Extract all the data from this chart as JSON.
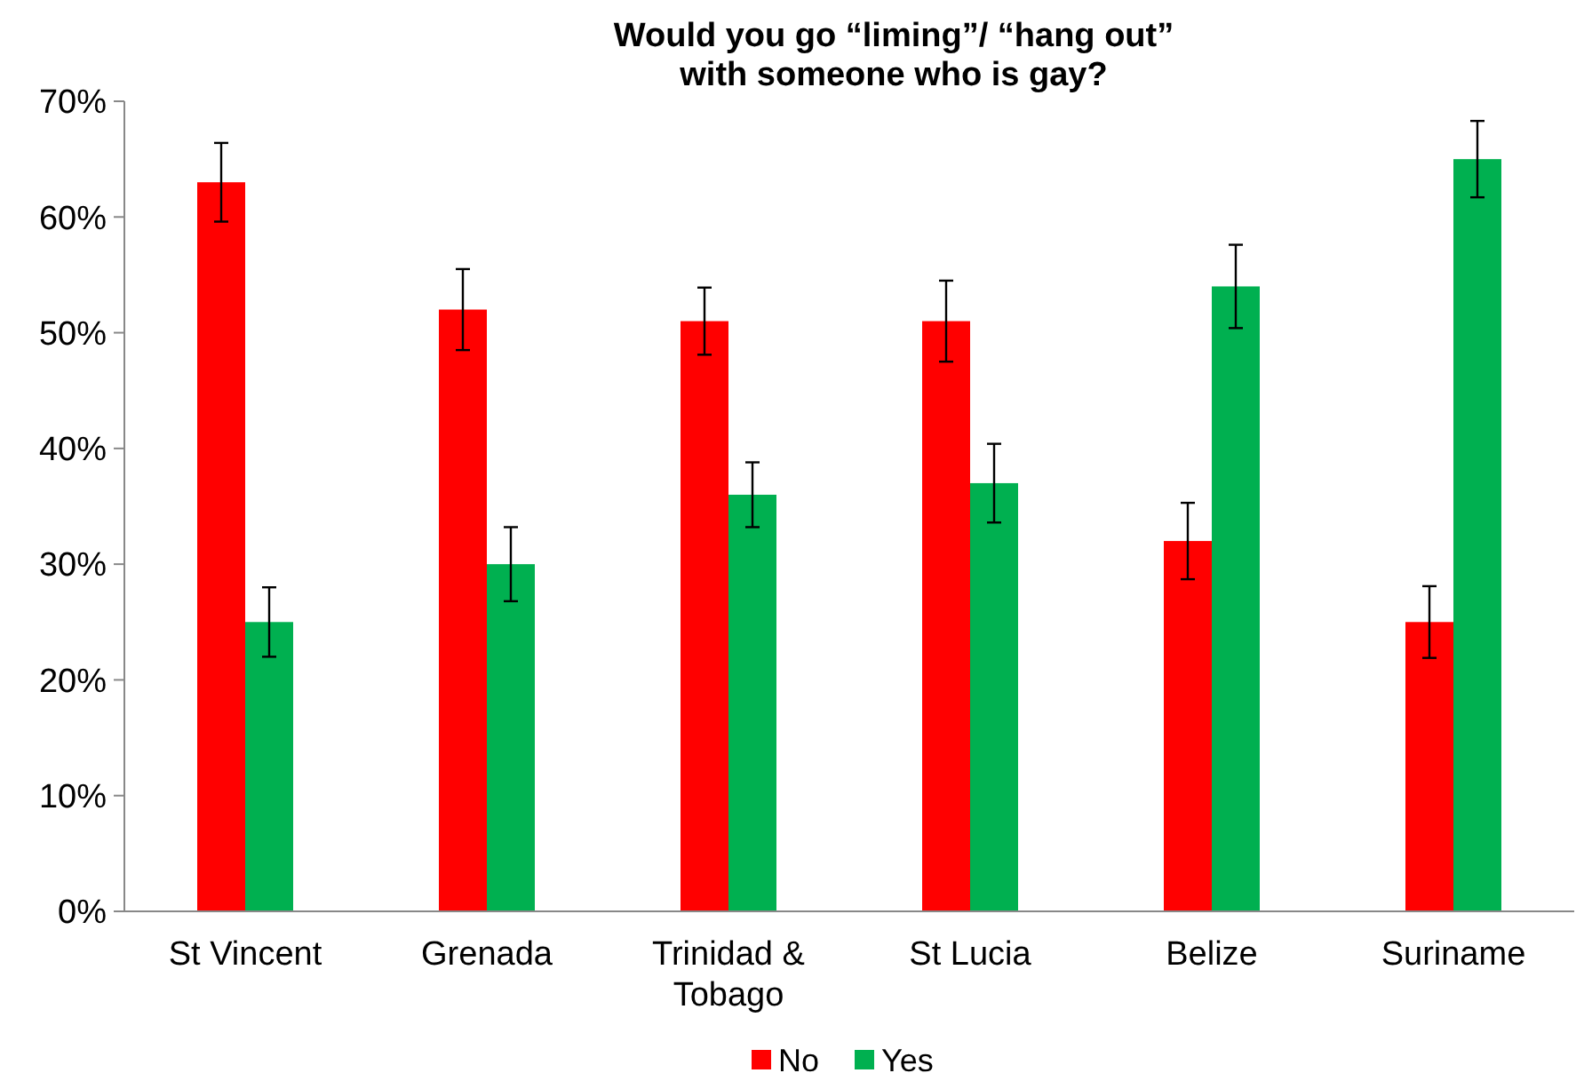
{
  "chart_data": {
    "type": "bar",
    "title": "Would you go “liming”/ “hang out” with someone who is gay?",
    "categories": [
      "St Vincent",
      "Grenada",
      "Trinidad & Tobago",
      "St Lucia",
      "Belize",
      "Suriname"
    ],
    "series": [
      {
        "name": "No",
        "color": "#ff0000",
        "values": [
          63,
          52,
          51,
          51,
          32,
          25
        ],
        "errors": [
          3.4,
          3.5,
          2.9,
          3.5,
          3.3,
          3.1
        ]
      },
      {
        "name": "Yes",
        "color": "#00b050",
        "values": [
          25,
          30,
          36,
          37,
          54,
          65
        ],
        "errors": [
          3,
          3.2,
          2.8,
          3.4,
          3.6,
          3.3
        ]
      }
    ],
    "ylim": [
      0,
      70
    ],
    "yticks": [
      {
        "value": 0,
        "label": "0%"
      },
      {
        "value": 10,
        "label": "10%"
      },
      {
        "value": 20,
        "label": "20%"
      },
      {
        "value": 30,
        "label": "30%"
      },
      {
        "value": 40,
        "label": "40%"
      },
      {
        "value": 50,
        "label": "50%"
      },
      {
        "value": 60,
        "label": "60%"
      },
      {
        "value": 70,
        "label": "70%"
      }
    ],
    "legend": "bottom",
    "grid": false
  }
}
